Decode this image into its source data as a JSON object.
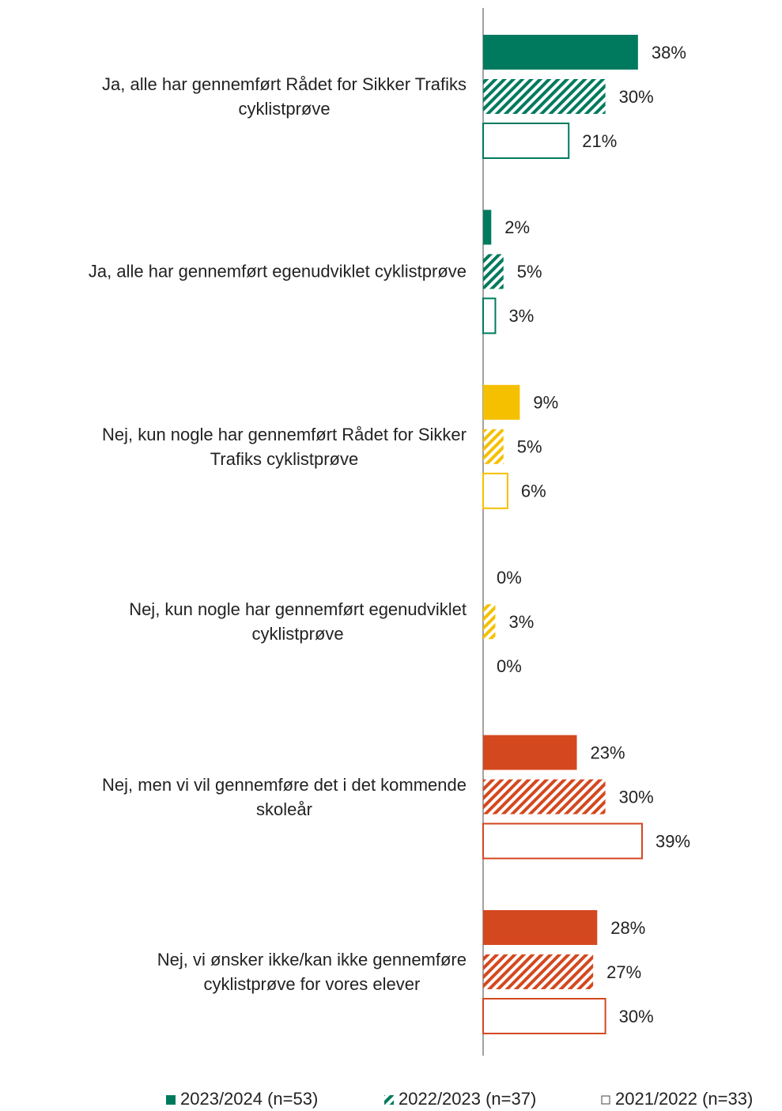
{
  "chart_data": {
    "type": "hbar-grouped",
    "categories": [
      "Ja, alle har gennemført Rådet for Sikker Trafiks\ncyklistprøve",
      "Ja, alle har gennemført egenudviklet cyklistprøve",
      "Nej, kun nogle har gennemført Rådet for Sikker\nTrafiks cyklistprøve",
      "Nej, kun nogle har gennemført egenudviklet\ncyklistprøve",
      "Nej, men vi vil gennemføre det i det kommende\nskoleår",
      "Nej, vi ønsker ikke/kan ikke gennemføre\ncyklistprøve for vores elever"
    ],
    "category_colors": [
      "#007a5e",
      "#007a5e",
      "#f5c000",
      "#f5c000",
      "#d4481f",
      "#d4481f"
    ],
    "series": [
      {
        "name": "2023/2024 (n=53)",
        "pattern": "solid",
        "values": [
          38,
          2,
          9,
          0,
          23,
          28
        ],
        "value_labels": [
          "38%",
          "2%",
          "9%",
          "0%",
          "23%",
          "28%"
        ]
      },
      {
        "name": "2022/2023 (n=37)",
        "pattern": "hatch",
        "values": [
          30,
          5,
          5,
          3,
          30,
          27
        ],
        "value_labels": [
          "30%",
          "5%",
          "5%",
          "3%",
          "30%",
          "27%"
        ]
      },
      {
        "name": "2021/2022 (n=33)",
        "pattern": "outline",
        "values": [
          21,
          3,
          6,
          0,
          39,
          30
        ],
        "value_labels": [
          "21%",
          "3%",
          "6%",
          "0%",
          "39%",
          "30%"
        ]
      }
    ],
    "legend": "bottom"
  }
}
